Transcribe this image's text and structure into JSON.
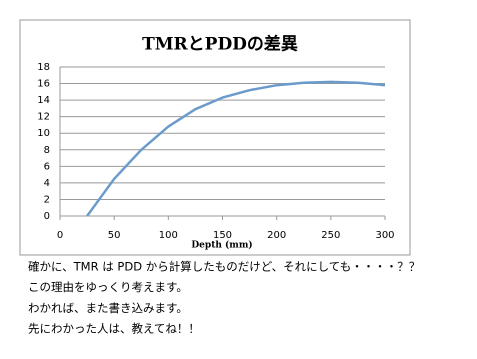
{
  "chart_data": {
    "type": "line",
    "title": "TMRとPDDの差異",
    "x_label": "Depth (mm)",
    "x": [
      25,
      50,
      75,
      100,
      125,
      150,
      175,
      200,
      225,
      250,
      275,
      300
    ],
    "series": [
      {
        "color": "#6b9bcb",
        "values": [
          0,
          4.5,
          8,
          10.8,
          12.9,
          14.3,
          15.2,
          15.8,
          16.1,
          16.2,
          16.1,
          15.8
        ]
      }
    ],
    "xlim": [
      0,
      300
    ],
    "xticks": [
      0,
      50,
      100,
      150,
      200,
      250,
      300
    ],
    "ylim": [
      0,
      18
    ],
    "yticks": [
      0,
      2,
      4,
      6,
      8,
      10,
      12,
      14,
      16,
      18
    ],
    "grid": true
  },
  "paragraphs": [
    "確かに、TMR は PDD から計算したものだけど、それにしても・・・・？？",
    "この理由をゆっくり考えます。",
    "わかれば、また書き込みます。",
    "先にわかった人は、教えてね！！"
  ]
}
